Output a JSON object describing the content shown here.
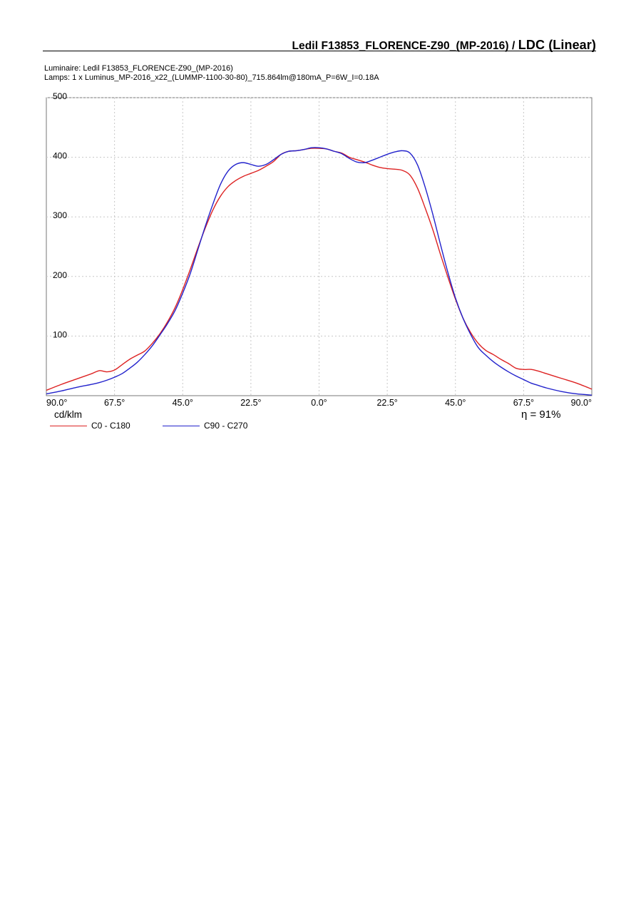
{
  "document": {
    "title_main": "Ledil F13853_FLORENCE-Z90_(MP-2016) / ",
    "title_big": "LDC (Linear)",
    "luminaire_line": "Luminaire: Ledil F13853_FLORENCE-Z90_(MP-2016)",
    "lamps_line": "Lamps: 1 x Luminus_MP-2016_x22_(LUMMP-1100-30-80)_715.864lm@180mA_P=6W_I=0.18A",
    "unit_label": "cd/klm",
    "efficiency": "η = 91%"
  },
  "chart_data": {
    "type": "line",
    "title": "LDC (Linear)",
    "ylabel": "cd/klm",
    "ylim": [
      0,
      500
    ],
    "xlim": [
      -90,
      90
    ],
    "y_ticks": [
      "500",
      "400",
      "300",
      "200",
      "100"
    ],
    "y_tick_values": [
      500,
      400,
      300,
      200,
      100
    ],
    "x_ticks": [
      "90.0°",
      "67.5°",
      "45.0°",
      "22.5°",
      "0.0°",
      "22.5°",
      "45.0°",
      "67.5°",
      "90.0°"
    ],
    "x_tick_values": [
      -90,
      -67.5,
      -45,
      -22.5,
      0,
      22.5,
      45,
      67.5,
      90
    ],
    "grid": true,
    "legend_position": "bottom-left",
    "series": [
      {
        "name": "C0 - C180",
        "color": "#dd2222",
        "x": [
          -90,
          -85,
          -80,
          -75,
          -72.5,
          -70,
          -67.5,
          -65,
          -62.5,
          -60,
          -57.5,
          -55,
          -52.5,
          -50,
          -47.5,
          -45,
          -42.5,
          -40,
          -37.5,
          -35,
          -32.5,
          -30,
          -27.5,
          -25,
          -22.5,
          -20,
          -17.5,
          -15,
          -12.5,
          -10,
          -7.5,
          -5,
          -2.5,
          0,
          2.5,
          5,
          7.5,
          10,
          12.5,
          15,
          17.5,
          20,
          22.5,
          25,
          27.5,
          30,
          32.5,
          35,
          37.5,
          40,
          42.5,
          45,
          47.5,
          50,
          52.5,
          55,
          57.5,
          60,
          62.5,
          65,
          67.5,
          70,
          72.5,
          75,
          80,
          85,
          90
        ],
        "y": [
          9,
          19,
          28,
          37,
          42,
          40,
          43,
          52,
          61,
          68,
          75,
          88,
          104,
          124,
          148,
          178,
          212,
          248,
          282,
          312,
          335,
          351,
          361,
          368,
          373,
          378,
          385,
          393,
          405,
          410,
          411,
          413,
          415,
          415,
          414,
          410,
          407,
          400,
          396,
          392,
          387,
          383,
          381,
          380,
          378,
          370,
          348,
          315,
          279,
          238,
          199,
          162,
          130,
          106,
          88,
          76,
          69,
          61,
          54,
          46,
          44,
          44,
          41,
          37,
          29,
          21,
          11
        ]
      },
      {
        "name": "C90 - C270",
        "color": "#2222cc",
        "x": [
          -90,
          -85,
          -80,
          -75,
          -72.5,
          -70,
          -67.5,
          -65,
          -62.5,
          -60,
          -57.5,
          -55,
          -52.5,
          -50,
          -47.5,
          -45,
          -42.5,
          -40,
          -37.5,
          -35,
          -32.5,
          -30,
          -27.5,
          -25,
          -22.5,
          -20,
          -17.5,
          -15,
          -12.5,
          -10,
          -7.5,
          -5,
          -2.5,
          0,
          2.5,
          5,
          7.5,
          10,
          12.5,
          15,
          17.5,
          20,
          22.5,
          25,
          27.5,
          30,
          32.5,
          35,
          37.5,
          40,
          42.5,
          45,
          47.5,
          50,
          52.5,
          55,
          57.5,
          60,
          62.5,
          65,
          67.5,
          70,
          72.5,
          75,
          80,
          85,
          90
        ],
        "y": [
          3,
          8,
          14,
          19,
          22,
          26,
          31,
          37,
          46,
          56,
          69,
          84,
          102,
          121,
          143,
          172,
          205,
          245,
          285,
          322,
          355,
          377,
          388,
          391,
          388,
          385,
          388,
          396,
          405,
          410,
          411,
          413,
          416,
          416,
          414,
          410,
          406,
          398,
          392,
          391,
          395,
          400,
          405,
          409,
          411,
          407,
          387,
          350,
          305,
          255,
          207,
          164,
          130,
          103,
          81,
          68,
          57,
          48,
          40,
          33,
          27,
          21,
          17,
          13,
          7,
          3,
          1
        ]
      }
    ]
  }
}
